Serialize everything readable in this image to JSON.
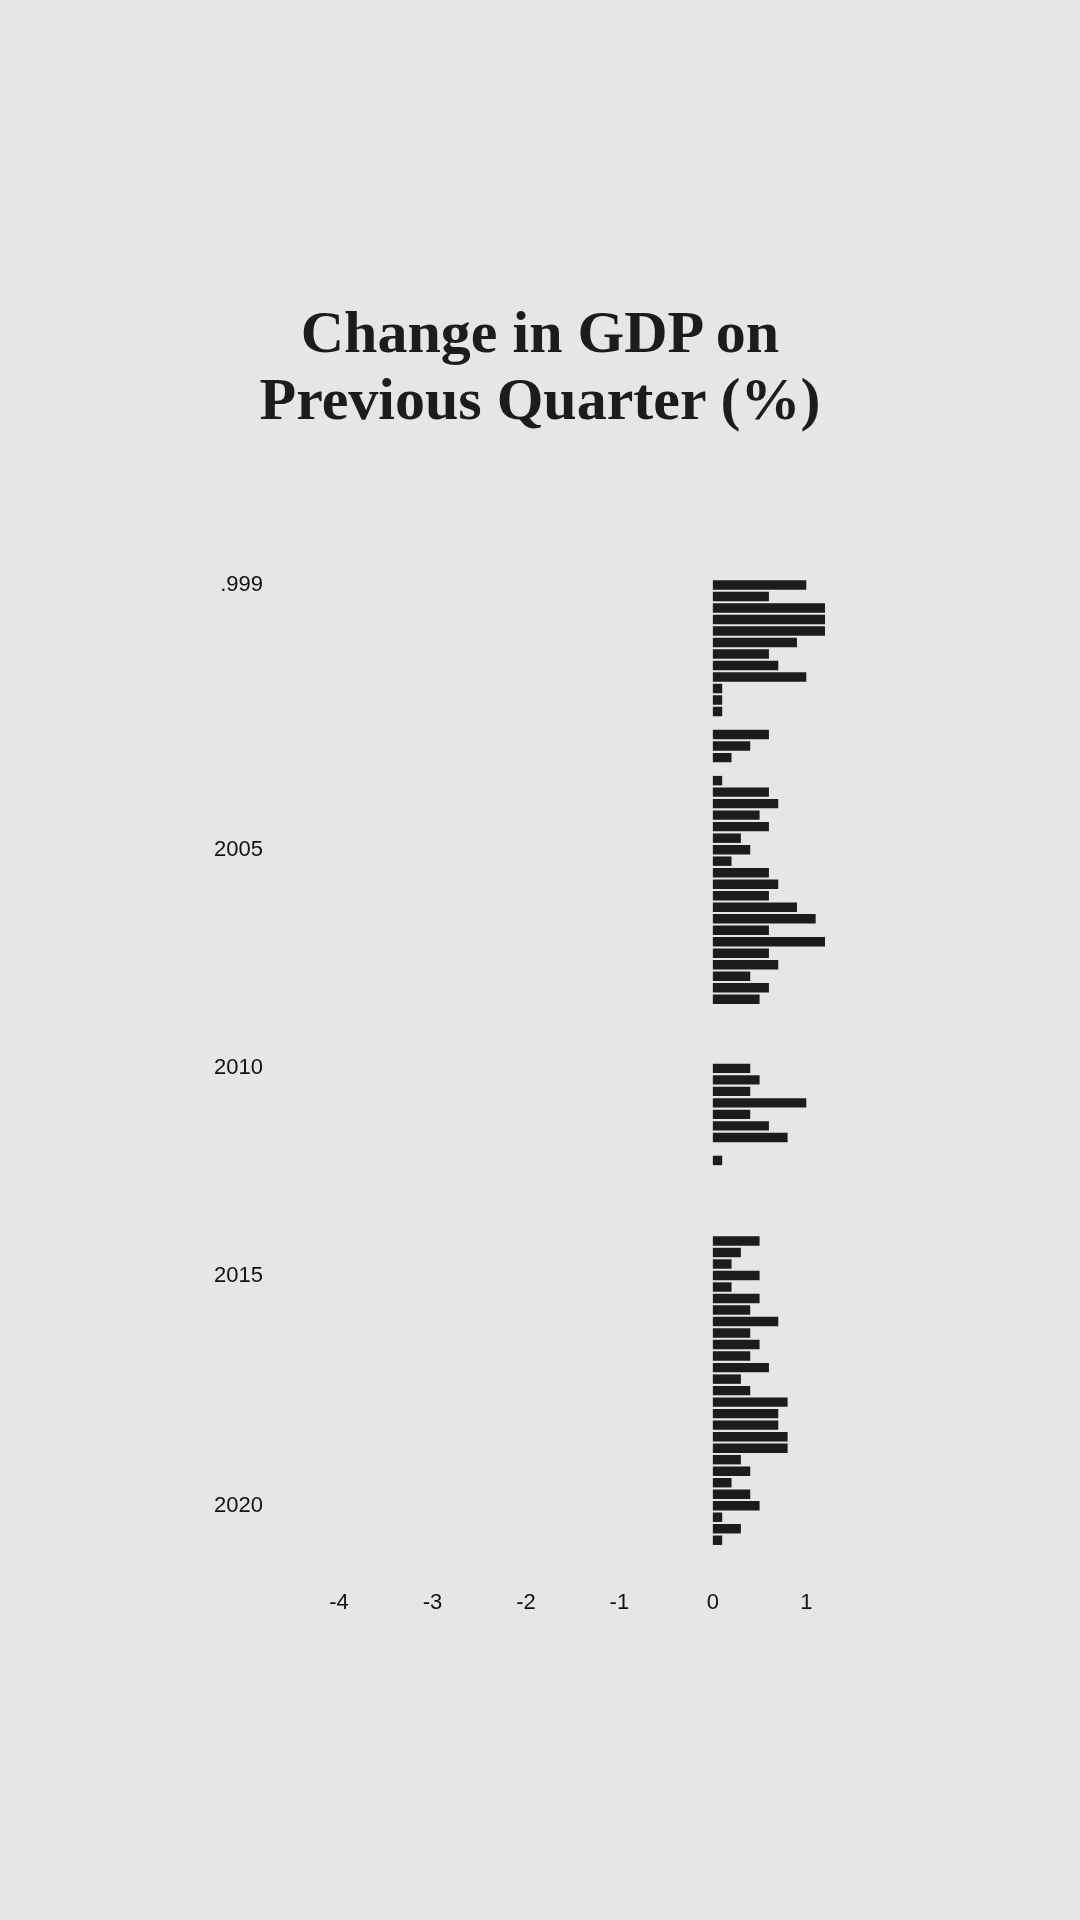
{
  "chart_data": {
    "type": "bar",
    "orientation": "horizontal",
    "title": "Change in GDP on Previous Quarter (%)",
    "categories": [
      ".999",
      null,
      null,
      null,
      null,
      null,
      null,
      null,
      null,
      null,
      null,
      null,
      null,
      null,
      null,
      null,
      null,
      null,
      null,
      null,
      null,
      null,
      null,
      "2005",
      null,
      null,
      null,
      null,
      null,
      null,
      null,
      null,
      null,
      null,
      null,
      null,
      null,
      null,
      null,
      null,
      null,
      null,
      "2010",
      null,
      null,
      null,
      null,
      null,
      null,
      null,
      null,
      null,
      null,
      null,
      null,
      null,
      null,
      null,
      null,
      null,
      "2015",
      null,
      null,
      null,
      null,
      null,
      null,
      null,
      null,
      null,
      null,
      null,
      null,
      null,
      null,
      null,
      null,
      null,
      null,
      null,
      "2020",
      null,
      null,
      null
    ],
    "values": [
      1.0,
      0.6,
      1.2,
      1.2,
      1.2,
      0.9,
      0.6,
      0.7,
      1.0,
      0.1,
      0.1,
      0.1,
      null,
      0.6,
      0.4,
      0.2,
      null,
      0.1,
      0.6,
      0.7,
      0.5,
      0.6,
      0.3,
      0.4,
      0.2,
      0.6,
      0.7,
      0.6,
      0.9,
      1.1,
      0.6,
      1.2,
      0.6,
      0.7,
      0.4,
      0.6,
      0.5,
      null,
      null,
      null,
      null,
      null,
      0.4,
      0.5,
      0.4,
      1.0,
      0.4,
      0.6,
      0.8,
      null,
      0.1,
      null,
      null,
      null,
      null,
      null,
      null,
      0.5,
      0.3,
      0.2,
      0.5,
      0.2,
      0.5,
      0.4,
      0.7,
      0.4,
      0.5,
      0.4,
      0.6,
      0.3,
      0.4,
      0.8,
      0.7,
      0.7,
      0.8,
      0.8,
      0.3,
      0.4,
      0.2,
      0.4,
      0.5,
      0.1,
      0.3,
      0.1
    ],
    "color": "#1c1c1c",
    "xlim": [
      -4,
      1.2
    ],
    "xticks": [
      -4,
      -3,
      -2,
      -1,
      0,
      1
    ]
  }
}
